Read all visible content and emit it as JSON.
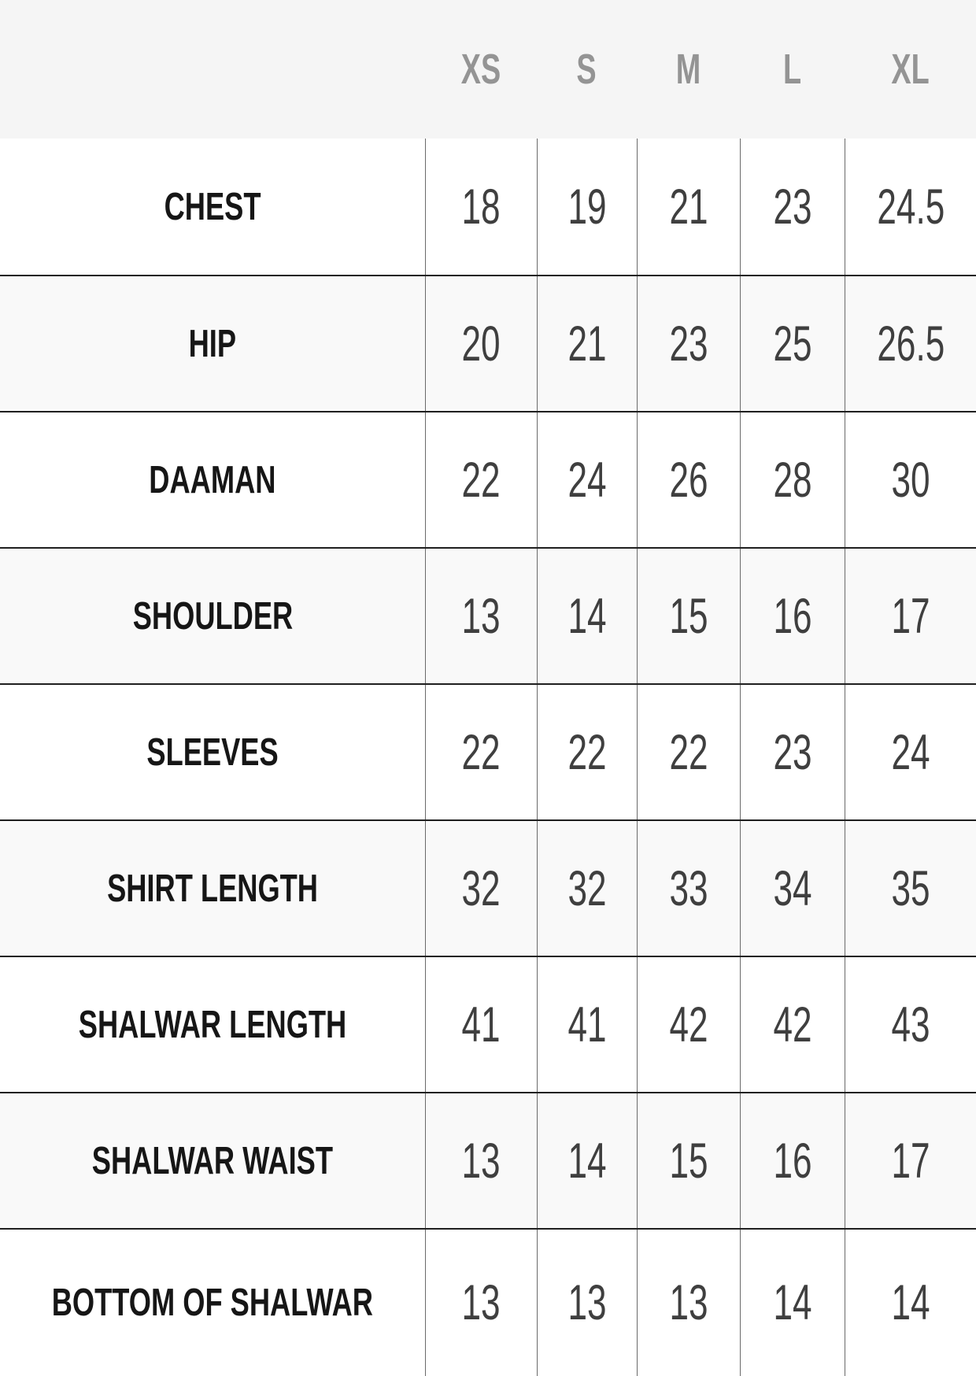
{
  "chart_data": {
    "type": "table",
    "columns": [
      "",
      "XS",
      "S",
      "M",
      "L",
      "XL"
    ],
    "rows": [
      [
        "CHEST",
        18,
        19,
        21,
        23,
        24.5
      ],
      [
        "HIP",
        20,
        21,
        23,
        25,
        26.5
      ],
      [
        "DAAMAN",
        22,
        24,
        26,
        28,
        30
      ],
      [
        "SHOULDER",
        13,
        14,
        15,
        16,
        17
      ],
      [
        "SLEEVES",
        22,
        22,
        22,
        23,
        24
      ],
      [
        "SHIRT LENGTH",
        32,
        32,
        33,
        34,
        35
      ],
      [
        "SHALWAR LENGTH",
        41,
        41,
        42,
        42,
        43
      ],
      [
        "SHALWAR WAIST",
        13,
        14,
        15,
        16,
        17
      ],
      [
        "BOTTOM OF SHALWAR",
        13,
        13,
        13,
        14,
        14
      ]
    ],
    "title": "",
    "legend": "none",
    "grid": "on"
  },
  "style": {
    "header_bg": "#f5f5f5",
    "header_text_color": "#949494",
    "label_text_color": "#161616",
    "value_text_color": "#3f3f3f",
    "row_alt_bg": "#f9f9f9",
    "row_bg": "#ffffff",
    "horizontal_line_color": "#1f1f1f",
    "vertical_line_color": "#6a6a6a"
  }
}
